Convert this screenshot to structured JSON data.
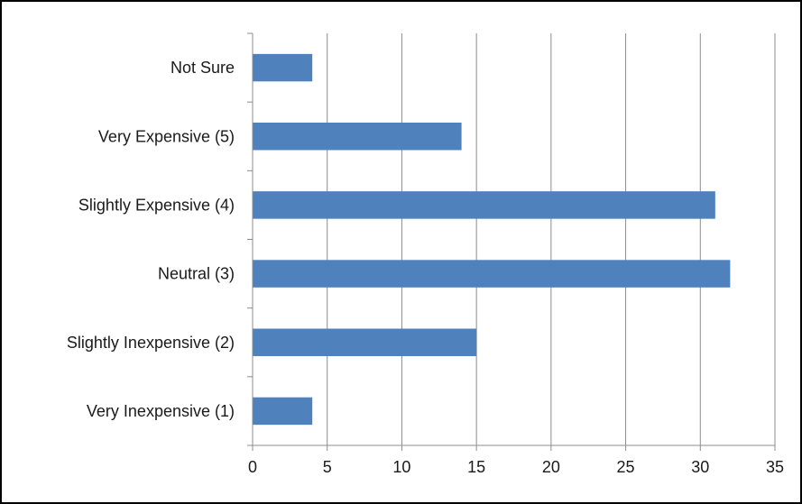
{
  "chart_data": {
    "type": "bar",
    "orientation": "horizontal",
    "title": "",
    "xlabel": "",
    "ylabel": "",
    "categories": [
      "Not Sure",
      "Very Expensive (5)",
      "Slightly Expensive (4)",
      "Neutral (3)",
      "Slightly Inexpensive (2)",
      "Very Inexpensive (1)"
    ],
    "values": [
      4,
      14,
      31,
      32,
      15,
      4
    ],
    "xlim": [
      0,
      35
    ],
    "xticks": [
      0,
      5,
      10,
      15,
      20,
      25,
      30,
      35
    ],
    "grid": true,
    "legend": "none",
    "bar_color": "#4F81BD",
    "grid_color": "#8C8C8C"
  }
}
